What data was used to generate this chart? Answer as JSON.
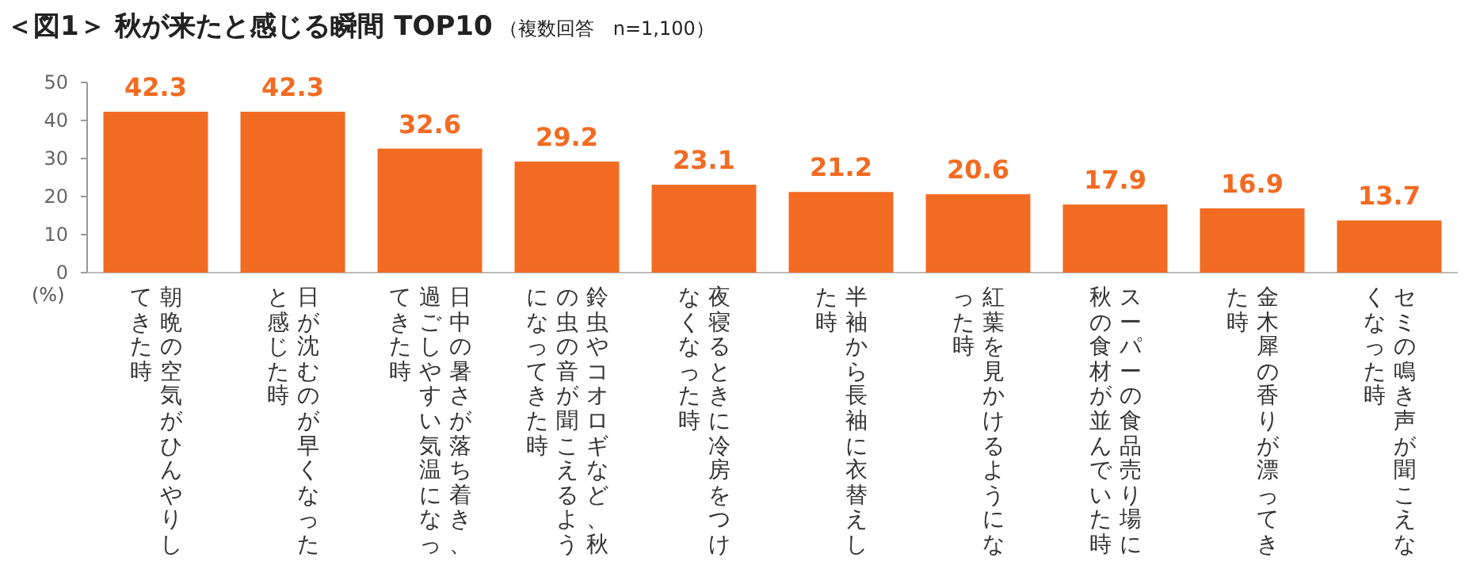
{
  "chart_data": {
    "type": "bar",
    "title": "＜図1＞ 秋が来たと感じる瞬間 TOP10",
    "subtitle": "（複数回答　n=1,100）",
    "ylabel": "(%)",
    "categories": [
      "朝晩の空気がひんやりしてきた時",
      "日が沈むのが早くなったと感じた時",
      "日中の暑さが落ち着き、過ごしやすい気温になってきた時",
      "鈴虫やコオロギなど、秋の虫の音が聞こえるようになってきた時",
      "夜寝るときに冷房をつけなくなった時",
      "半袖から長袖に衣替えした時",
      "紅葉を見かけるようになった時",
      "スーパーの食品売り場に秋の食材が並んでいた時",
      "金木犀の香りが漂ってきた時",
      "セミの鳴き声が聞こえなくなった時"
    ],
    "values": [
      42.3,
      42.3,
      32.6,
      29.2,
      23.1,
      21.2,
      20.6,
      17.9,
      16.9,
      13.7
    ],
    "color": "#f26b23",
    "data_labels": true,
    "ylim": [
      0,
      50
    ],
    "yticks": [
      0,
      10,
      20,
      30,
      40,
      50
    ],
    "grid": false
  }
}
